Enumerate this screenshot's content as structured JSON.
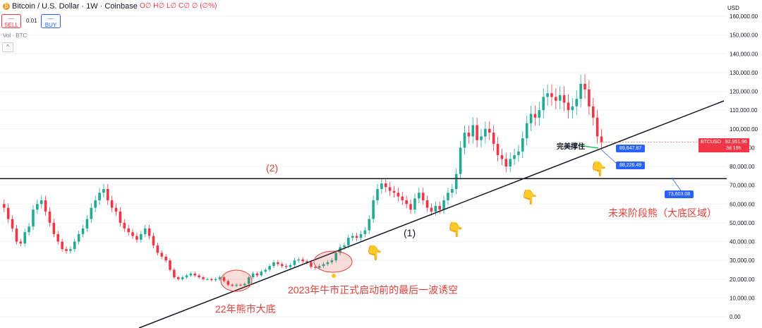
{
  "header": {
    "logo_glyph": "₿",
    "symbol_title": "Bitcoin / U.S. Dollar · 1W · Coinbase",
    "ohlc": "O∅ H∅ L∅ C∅ ∅ (∅%)",
    "sell_label": "SELL",
    "sell_dash": "—",
    "buy_label": "BUY",
    "buy_dash": "—",
    "spread": "0.01",
    "volume_label": "Vol · BTC",
    "collapse_glyph": "^",
    "currency": "USD"
  },
  "price_axis": {
    "ticks": [
      "160,000.00",
      "150,000.00",
      "140,000.00",
      "130,000.00",
      "120,000.00",
      "110,000.00",
      "100,000.00",
      "90,000.00",
      "80,000.00",
      "70,000.00",
      "60,000.00",
      "50,000.00",
      "40,000.00",
      "30,000.00",
      "20,000.00",
      "10,000.00",
      "0.00"
    ],
    "current_symbol": "BTCUSD",
    "current_price": "92,951.96",
    "countdown": "3d 19h"
  },
  "annotations": {
    "label_2": "(2)",
    "label_1": "(1)",
    "support": "完美撑住",
    "future": "未来阶段熊（大底区域）",
    "bull_start": "2023年牛市正式启动前的最后一波诱空",
    "bear_bottom": "22年熊市大底",
    "hand": "👇",
    "tag_a": "89,647.87",
    "tag_b": "88,226.49",
    "tag_c": "73,603.08"
  },
  "colors": {
    "up": "#22ab94",
    "down": "#f23645",
    "trendline": "#131722",
    "annotation": "#e0413a",
    "tag": "#2962ff"
  },
  "chart_data": {
    "type": "candlestick",
    "y_range": [
      0,
      160000
    ],
    "horizontal_line": 73500,
    "trendline": [
      [
        0,
        0
      ],
      [
        200,
        93000
      ]
    ],
    "candles": [
      [
        60000,
        58000
      ],
      [
        58000,
        52000
      ],
      [
        52000,
        47000
      ],
      [
        47000,
        40000
      ],
      [
        40000,
        39000
      ],
      [
        39000,
        45000
      ],
      [
        45000,
        48000
      ],
      [
        48000,
        57000
      ],
      [
        57000,
        60000
      ],
      [
        60000,
        62000
      ],
      [
        62000,
        56000
      ],
      [
        56000,
        50000
      ],
      [
        50000,
        44000
      ],
      [
        44000,
        40000
      ],
      [
        40000,
        36000
      ],
      [
        36000,
        35000
      ],
      [
        35000,
        36000
      ],
      [
        36000,
        40000
      ],
      [
        40000,
        44000
      ],
      [
        44000,
        47000
      ],
      [
        47000,
        52000
      ],
      [
        52000,
        58000
      ],
      [
        58000,
        62000
      ],
      [
        62000,
        66000
      ],
      [
        66000,
        68000
      ],
      [
        68000,
        62000
      ],
      [
        62000,
        58000
      ],
      [
        58000,
        56000
      ],
      [
        56000,
        50000
      ],
      [
        50000,
        47000
      ],
      [
        47000,
        45000
      ],
      [
        45000,
        43000
      ],
      [
        43000,
        41000
      ],
      [
        41000,
        44000
      ],
      [
        44000,
        47000
      ],
      [
        47000,
        43000
      ],
      [
        43000,
        38000
      ],
      [
        38000,
        34000
      ],
      [
        34000,
        32000
      ],
      [
        32000,
        30000
      ],
      [
        30000,
        25000
      ],
      [
        25000,
        21000
      ],
      [
        21000,
        20000
      ],
      [
        20000,
        21000
      ],
      [
        21000,
        22000
      ],
      [
        22000,
        23000
      ],
      [
        23000,
        22000
      ],
      [
        22000,
        21000
      ],
      [
        21000,
        20000
      ],
      [
        20000,
        20000
      ],
      [
        20000,
        19500
      ],
      [
        19500,
        20000
      ],
      [
        20000,
        21000
      ],
      [
        21000,
        19000
      ],
      [
        19000,
        17000
      ],
      [
        17000,
        16500
      ],
      [
        16500,
        17000
      ],
      [
        17000,
        16800
      ],
      [
        16800,
        17500
      ],
      [
        17500,
        21000
      ],
      [
        21000,
        23000
      ],
      [
        23000,
        22000
      ],
      [
        22000,
        24000
      ],
      [
        24000,
        25000
      ],
      [
        25000,
        27000
      ],
      [
        27000,
        29000
      ],
      [
        29000,
        28000
      ],
      [
        28000,
        27000
      ],
      [
        27000,
        26500
      ],
      [
        26500,
        27500
      ],
      [
        27500,
        30000
      ],
      [
        30000,
        30500
      ],
      [
        30500,
        29500
      ],
      [
        29500,
        29000
      ],
      [
        29000,
        26500
      ],
      [
        26500,
        26000
      ],
      [
        26000,
        27000
      ],
      [
        27000,
        28000
      ],
      [
        28000,
        29000
      ],
      [
        29000,
        30000
      ],
      [
        30000,
        34000
      ],
      [
        34000,
        37000
      ],
      [
        37000,
        38000
      ],
      [
        38000,
        42000
      ],
      [
        42000,
        43000
      ],
      [
        43000,
        42000
      ],
      [
        42000,
        44000
      ],
      [
        44000,
        46000
      ],
      [
        46000,
        52000
      ],
      [
        52000,
        62000
      ],
      [
        62000,
        68000
      ],
      [
        68000,
        71000
      ],
      [
        71000,
        69000
      ],
      [
        69000,
        67000
      ],
      [
        67000,
        66000
      ],
      [
        66000,
        64000
      ],
      [
        64000,
        62000
      ],
      [
        62000,
        60000
      ],
      [
        60000,
        57000
      ],
      [
        57000,
        63000
      ],
      [
        63000,
        66000
      ],
      [
        66000,
        62000
      ],
      [
        62000,
        58000
      ],
      [
        58000,
        56000
      ],
      [
        56000,
        59000
      ],
      [
        59000,
        57000
      ],
      [
        57000,
        62000
      ],
      [
        62000,
        66000
      ],
      [
        66000,
        68000
      ],
      [
        68000,
        76000
      ],
      [
        76000,
        90000
      ],
      [
        90000,
        98000
      ],
      [
        98000,
        96000
      ],
      [
        96000,
        102000
      ],
      [
        102000,
        94000
      ],
      [
        94000,
        96000
      ],
      [
        96000,
        100000
      ],
      [
        100000,
        98000
      ],
      [
        98000,
        92000
      ],
      [
        92000,
        86000
      ],
      [
        86000,
        84000
      ],
      [
        84000,
        80000
      ],
      [
        80000,
        84000
      ],
      [
        84000,
        86000
      ],
      [
        86000,
        88000
      ],
      [
        88000,
        95000
      ],
      [
        95000,
        103000
      ],
      [
        103000,
        108000
      ],
      [
        108000,
        106000
      ],
      [
        106000,
        110000
      ],
      [
        110000,
        117000
      ],
      [
        117000,
        119000
      ],
      [
        119000,
        117000
      ],
      [
        117000,
        115000
      ],
      [
        115000,
        118000
      ],
      [
        118000,
        114000
      ],
      [
        114000,
        110000
      ],
      [
        110000,
        112000
      ],
      [
        112000,
        116000
      ],
      [
        116000,
        124000
      ],
      [
        124000,
        121000
      ],
      [
        121000,
        112000
      ],
      [
        112000,
        106000
      ],
      [
        106000,
        96000
      ],
      [
        96000,
        93000
      ]
    ]
  }
}
